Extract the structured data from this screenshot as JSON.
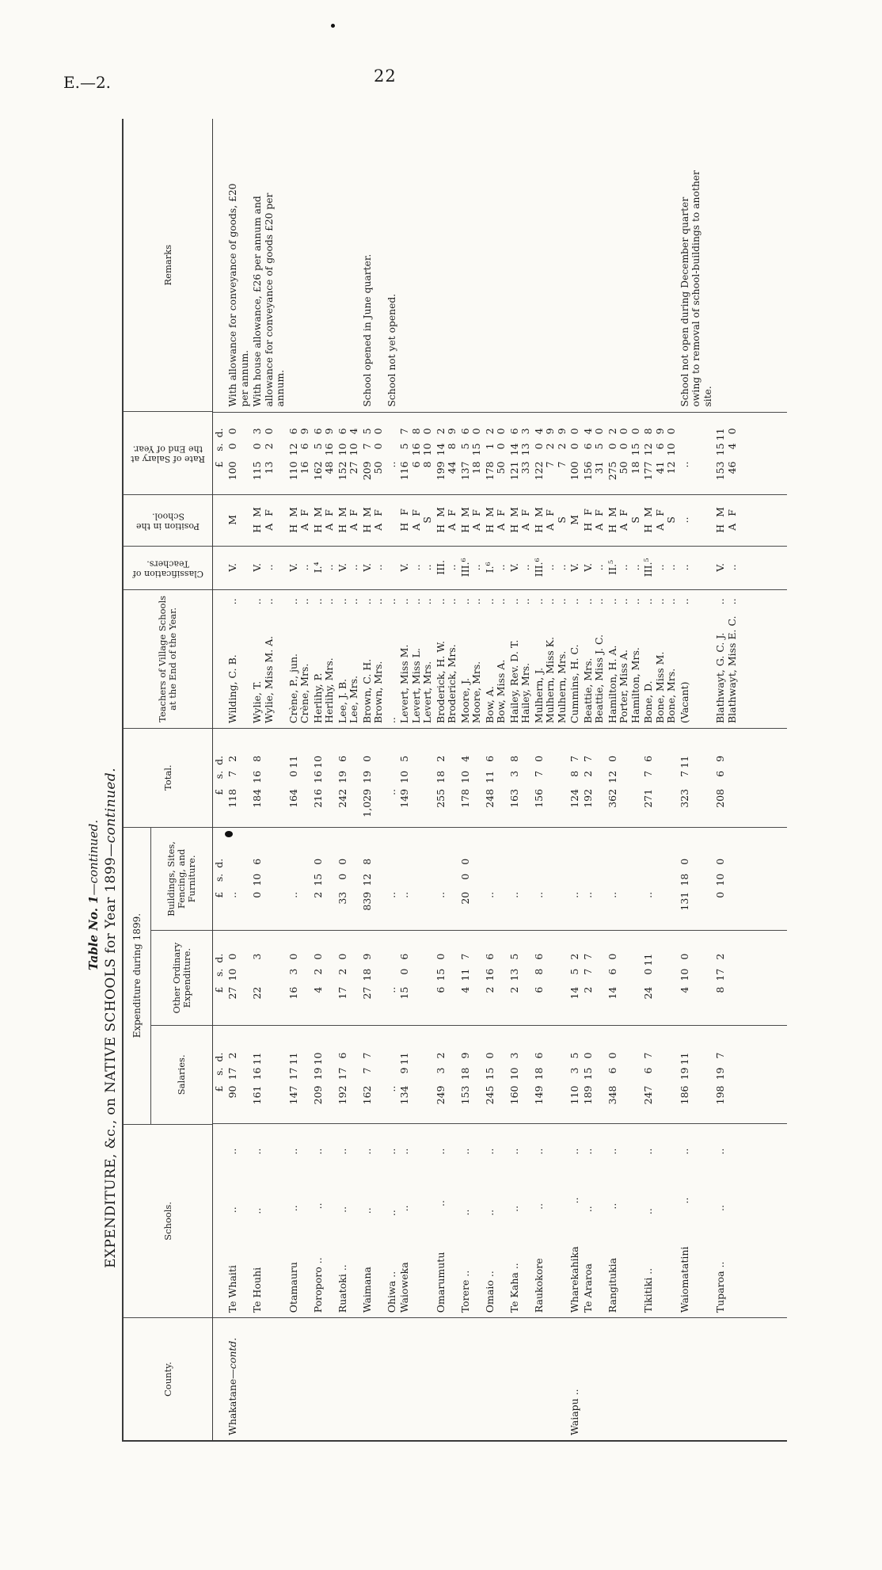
{
  "page": {
    "doc_ref": "E.—2.",
    "page_number": "22"
  },
  "title": {
    "table_no": "Table No. 1",
    "table_no_cont": "—continued.",
    "main": "EXPENDITURE, &c., on NATIVE SCHOOLS for Year 1899",
    "main_cont": "—continued."
  },
  "table": {
    "headers": {
      "county": "County.",
      "schools": "Schools.",
      "expenditure_group": "Expenditure during 1899.",
      "salaries": "Salaries.",
      "other": "Other Ordinary Expenditure.",
      "buildings": "Buildings, Sites, Fencing, and Furniture.",
      "total": "Total.",
      "teachers": "Teachers of Village Schools at the End of the Year.",
      "classification": "Classification of Teachers.",
      "position": "Position in the School.",
      "rate": "Rate of Salary at the End of Year.",
      "remarks": "Remarks"
    },
    "money_units": [
      "£",
      "s.",
      "d."
    ],
    "rows": [
      {
        "county": "Whakatane—",
        "county_italic": "contd.",
        "school": "Te Whaiti",
        "salaries": [
          "90",
          "17",
          "2"
        ],
        "other": [
          "27",
          "10",
          "0"
        ],
        "buildings": [
          "..",
          "",
          ""
        ],
        "total": [
          "118",
          "7",
          "2"
        ],
        "teachers": [
          {
            "name": "Wilding, C. B.",
            "classification": "V.",
            "position": "M",
            "rate": [
              "100",
              "0",
              "0"
            ]
          }
        ],
        "remark": "With allowance for conveyance of goods, £20 per annum."
      },
      {
        "county": "",
        "county_italic": "",
        "school": "Te Houhi",
        "salaries": [
          "161",
          "16",
          "11"
        ],
        "other": [
          "22",
          "",
          "3"
        ],
        "buildings": [
          "0",
          "10",
          "6"
        ],
        "total": [
          "184",
          "16",
          "8"
        ],
        "teachers": [
          {
            "name": "Wylie, T.",
            "classification": "V.",
            "position": "H M",
            "rate": [
              "115",
              "0",
              "3"
            ]
          },
          {
            "name": "Wylie, Miss M. A.",
            "classification": "..",
            "position": "A F",
            "rate": [
              "13",
              "2",
              "0"
            ]
          }
        ],
        "remark": "With house allowance, £26 per annum and allowance for conveyance of goods £20 per annum."
      },
      {
        "county": "",
        "county_italic": "",
        "school": "Otamauru",
        "salaries": [
          "147",
          "17",
          "11"
        ],
        "other": [
          "16",
          "3",
          "0"
        ],
        "buildings": [
          "..",
          "",
          ""
        ],
        "total": [
          "164",
          "0",
          "11"
        ],
        "teachers": [
          {
            "name": "Crène, P., jun.",
            "classification": "V.",
            "position": "H M",
            "rate": [
              "110",
              "12",
              "6"
            ]
          },
          {
            "name": "Crène, Mrs.",
            "classification": "..",
            "position": "A F",
            "rate": [
              "16",
              "6",
              "9"
            ]
          }
        ],
        "remark": ""
      },
      {
        "county": "",
        "county_italic": "",
        "school": "Poroporo ..",
        "salaries": [
          "209",
          "19",
          "10"
        ],
        "other": [
          "4",
          "2",
          "0"
        ],
        "buildings": [
          "2",
          "15",
          "0"
        ],
        "total": [
          "216",
          "16",
          "10"
        ],
        "teachers": [
          {
            "name": "Herlihy, P.",
            "classification": "I.⁴",
            "position": "H M",
            "rate": [
              "162",
              "5",
              "6"
            ]
          },
          {
            "name": "Herlihy, Mrs.",
            "classification": "..",
            "position": "A F",
            "rate": [
              "48",
              "16",
              "9"
            ]
          }
        ],
        "remark": ""
      },
      {
        "county": "",
        "county_italic": "",
        "school": "Ruatoki ..",
        "salaries": [
          "192",
          "17",
          "6"
        ],
        "other": [
          "17",
          "2",
          "0"
        ],
        "buildings": [
          "33",
          "0",
          "0"
        ],
        "total": [
          "242",
          "19",
          "6"
        ],
        "teachers": [
          {
            "name": "Lee, J. B.",
            "classification": "V.",
            "position": "H M",
            "rate": [
              "152",
              "10",
              "6"
            ]
          },
          {
            "name": "Lee, Mrs.",
            "classification": "..",
            "position": "A F",
            "rate": [
              "27",
              "10",
              "4"
            ]
          }
        ],
        "remark": ""
      },
      {
        "county": "",
        "county_italic": "",
        "school": "Waimana",
        "salaries": [
          "162",
          "7",
          "7"
        ],
        "other": [
          "27",
          "18",
          "9"
        ],
        "buildings": [
          "839",
          "12",
          "8"
        ],
        "total": [
          "1,029",
          "19",
          "0"
        ],
        "teachers": [
          {
            "name": "Brown, C. H.",
            "classification": "V.",
            "position": "H M",
            "rate": [
              "209",
              "7",
              "5"
            ]
          },
          {
            "name": "Brown, Mrs.",
            "classification": "..",
            "position": "A F",
            "rate": [
              "50",
              "0",
              "0"
            ]
          }
        ],
        "remark": "School opened in June quarter."
      },
      {
        "county": "",
        "county_italic": "",
        "school": "Ohiwa ..",
        "salaries": [
          "..",
          "",
          ""
        ],
        "other": [
          "..",
          "",
          ""
        ],
        "buildings": [
          "..",
          "",
          ""
        ],
        "total": [
          "..",
          "",
          ""
        ],
        "teachers": [
          {
            "name": "..",
            "classification": "",
            "position": "",
            "rate": [
              "..",
              "",
              ""
            ]
          }
        ],
        "remark": "School not yet opened."
      },
      {
        "county": "",
        "county_italic": "",
        "school": "Waioweka",
        "salaries": [
          "134",
          "9",
          "11"
        ],
        "other": [
          "15",
          "0",
          "6"
        ],
        "buildings": [
          "..",
          "",
          ""
        ],
        "total": [
          "149",
          "10",
          "5"
        ],
        "teachers": [
          {
            "name": "Levert, Miss M.",
            "classification": "V.",
            "position": "H F",
            "rate": [
              "116",
              "5",
              "7"
            ]
          },
          {
            "name": "Levert, Miss L.",
            "classification": "..",
            "position": "A F",
            "rate": [
              "6",
              "16",
              "8"
            ]
          },
          {
            "name": "Levert, Mrs.",
            "classification": "..",
            "position": "S",
            "rate": [
              "8",
              "10",
              "0"
            ]
          }
        ],
        "remark": ""
      },
      {
        "county": "",
        "county_italic": "",
        "school": "Omarumutu",
        "salaries": [
          "249",
          "3",
          "2"
        ],
        "other": [
          "6",
          "15",
          "0"
        ],
        "buildings": [
          "..",
          "",
          ""
        ],
        "total": [
          "255",
          "18",
          "2"
        ],
        "teachers": [
          {
            "name": "Broderick, H. W.",
            "classification": "III.",
            "position": "H M",
            "rate": [
              "199",
              "14",
              "2"
            ]
          },
          {
            "name": "Broderick, Mrs.",
            "classification": "..",
            "position": "A F",
            "rate": [
              "44",
              "8",
              "9"
            ]
          }
        ],
        "remark": ""
      },
      {
        "county": "",
        "county_italic": "",
        "school": "Torere ..",
        "salaries": [
          "153",
          "18",
          "9"
        ],
        "other": [
          "4",
          "11",
          "7"
        ],
        "buildings": [
          "20",
          "0",
          "0"
        ],
        "total": [
          "178",
          "10",
          "4"
        ],
        "teachers": [
          {
            "name": "Moore, J.",
            "classification": "III.⁶",
            "position": "H M",
            "rate": [
              "137",
              "5",
              "6"
            ]
          },
          {
            "name": "Moore, Mrs.",
            "classification": "..",
            "position": "A F",
            "rate": [
              "18",
              "15",
              "0"
            ]
          }
        ],
        "remark": ""
      },
      {
        "county": "",
        "county_italic": "",
        "school": "Omaio ..",
        "salaries": [
          "245",
          "15",
          "0"
        ],
        "other": [
          "2",
          "16",
          "6"
        ],
        "buildings": [
          "..",
          "",
          ""
        ],
        "total": [
          "248",
          "11",
          "6"
        ],
        "teachers": [
          {
            "name": "Bow, A.",
            "classification": "I.⁶",
            "position": "H M",
            "rate": [
              "178",
              "1",
              "2"
            ]
          },
          {
            "name": "Bow, Miss A.",
            "classification": "..",
            "position": "A F",
            "rate": [
              "50",
              "0",
              "0"
            ]
          }
        ],
        "remark": ""
      },
      {
        "county": "",
        "county_italic": "",
        "school": "Te Kaha ..",
        "salaries": [
          "160",
          "10",
          "3"
        ],
        "other": [
          "2",
          "13",
          "5"
        ],
        "buildings": [
          "..",
          "",
          ""
        ],
        "total": [
          "163",
          "3",
          "8"
        ],
        "teachers": [
          {
            "name": "Hailey, Rev. D. T.",
            "classification": "V.",
            "position": "H M",
            "rate": [
              "121",
              "14",
              "6"
            ]
          },
          {
            "name": "Hailey, Mrs.",
            "classification": "..",
            "position": "A F",
            "rate": [
              "33",
              "13",
              "3"
            ]
          }
        ],
        "remark": ""
      },
      {
        "county": "",
        "county_italic": "",
        "school": "Raukokore",
        "salaries": [
          "149",
          "18",
          "6"
        ],
        "other": [
          "6",
          "8",
          "6"
        ],
        "buildings": [
          "..",
          "",
          ""
        ],
        "total": [
          "156",
          "7",
          "0"
        ],
        "teachers": [
          {
            "name": "Mulhern, J.",
            "classification": "III.⁶",
            "position": "H M",
            "rate": [
              "122",
              "0",
              "4"
            ]
          },
          {
            "name": "Mulhern, Miss K.",
            "classification": "..",
            "position": "A F",
            "rate": [
              "7",
              "2",
              "9"
            ]
          },
          {
            "name": "Mulhern, Mrs.",
            "classification": "..",
            "position": "S",
            "rate": [
              "7",
              "2",
              "9"
            ]
          }
        ],
        "remark": ""
      },
      {
        "county": "Waiapu ..",
        "county_italic": "",
        "school": "Wharekahika",
        "salaries": [
          "110",
          "3",
          "5"
        ],
        "other": [
          "14",
          "5",
          "2"
        ],
        "buildings": [
          "..",
          "",
          ""
        ],
        "total": [
          "124",
          "8",
          "7"
        ],
        "teachers": [
          {
            "name": "Cummins, H. C.",
            "classification": "V.",
            "position": "M",
            "rate": [
              "100",
              "0",
              "0"
            ]
          }
        ],
        "remark": ""
      },
      {
        "county": "",
        "county_italic": "",
        "school": "Te Araroa",
        "salaries": [
          "189",
          "15",
          "0"
        ],
        "other": [
          "2",
          "7",
          "7"
        ],
        "buildings": [
          "..",
          "",
          ""
        ],
        "total": [
          "192",
          "2",
          "7"
        ],
        "teachers": [
          {
            "name": "Beattie, Mrs.",
            "classification": "V.",
            "position": "H F",
            "rate": [
              "156",
              "6",
              "4"
            ]
          },
          {
            "name": "Beattie, Miss J. C.",
            "classification": "..",
            "position": "A F",
            "rate": [
              "31",
              "5",
              "0"
            ]
          }
        ],
        "remark": ""
      },
      {
        "county": "",
        "county_italic": "",
        "school": "Rangitukia",
        "salaries": [
          "348",
          "6",
          "0"
        ],
        "other": [
          "14",
          "6",
          "0"
        ],
        "buildings": [
          "..",
          "",
          ""
        ],
        "total": [
          "362",
          "12",
          "0"
        ],
        "teachers": [
          {
            "name": "Hamilton, H. A.",
            "classification": "II.⁵",
            "position": "H M",
            "rate": [
              "275",
              "0",
              "2"
            ]
          },
          {
            "name": "Porter, Miss A.",
            "classification": "..",
            "position": "A F",
            "rate": [
              "50",
              "0",
              "0"
            ]
          },
          {
            "name": "Hamilton, Mrs.",
            "classification": "..",
            "position": "S",
            "rate": [
              "18",
              "15",
              "0"
            ]
          }
        ],
        "remark": ""
      },
      {
        "county": "",
        "county_italic": "",
        "school": "Tikitiki ..",
        "salaries": [
          "247",
          "6",
          "7"
        ],
        "other": [
          "24",
          "0",
          "11"
        ],
        "buildings": [
          "..",
          "",
          ""
        ],
        "total": [
          "271",
          "7",
          "6"
        ],
        "teachers": [
          {
            "name": "Bone, D.",
            "classification": "III.⁵",
            "position": "H M",
            "rate": [
              "177",
              "12",
              "8"
            ]
          },
          {
            "name": "Bone, Miss M.",
            "classification": "..",
            "position": "A F",
            "rate": [
              "41",
              "6",
              "9"
            ]
          },
          {
            "name": "Bone, Mrs.",
            "classification": "..",
            "position": "S",
            "rate": [
              "12",
              "10",
              "0"
            ]
          }
        ],
        "remark": ""
      },
      {
        "county": "",
        "county_italic": "",
        "school": "Waiomatatini",
        "salaries": [
          "186",
          "19",
          "11"
        ],
        "other": [
          "4",
          "10",
          "0"
        ],
        "buildings": [
          "131",
          "18",
          "0"
        ],
        "total": [
          "323",
          "7",
          "11"
        ],
        "teachers": [
          {
            "name": "(Vacant)",
            "classification": "..",
            "position": "..",
            "rate": [
              "..",
              "",
              ""
            ]
          }
        ],
        "remark": "School not open during December quarter owing to removal of school-buildings to another site."
      },
      {
        "county": "",
        "county_italic": "",
        "school": "Tuparoa ..",
        "salaries": [
          "198",
          "19",
          "7"
        ],
        "other": [
          "8",
          "17",
          "2"
        ],
        "buildings": [
          "0",
          "10",
          "0"
        ],
        "total": [
          "208",
          "6",
          "9"
        ],
        "teachers": [
          {
            "name": "Blathwayt, G. C. J.",
            "classification": "V.",
            "position": "H M",
            "rate": [
              "153",
              "15",
              "11"
            ]
          },
          {
            "name": "Blathwayt, Miss E. C.",
            "classification": "..",
            "position": "A F",
            "rate": [
              "46",
              "4",
              "0"
            ]
          }
        ],
        "remark": ""
      }
    ]
  }
}
